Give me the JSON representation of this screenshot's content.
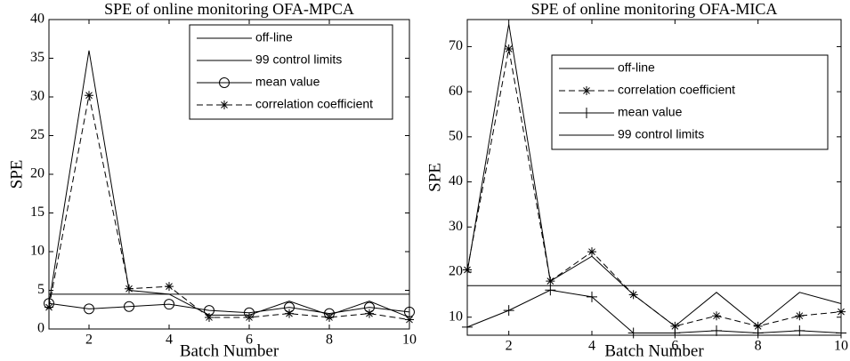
{
  "chart_data": [
    {
      "type": "line",
      "title": "SPE of online monitoring OFA-MPCA",
      "xlabel": "Batch Number",
      "ylabel": "SPE",
      "x": [
        1,
        2,
        3,
        4,
        5,
        6,
        7,
        8,
        9,
        10
      ],
      "xlim": [
        1,
        10
      ],
      "xticks": [
        2,
        4,
        6,
        8,
        10
      ],
      "ylim": [
        0,
        40
      ],
      "yticks": [
        0,
        5,
        10,
        15,
        20,
        25,
        30,
        35,
        40
      ],
      "legend": "upper right",
      "series": [
        {
          "name": "off-line",
          "color": "#000000",
          "dash": false,
          "marker": "none",
          "values": [
            3.3,
            36,
            5,
            4.5,
            1.8,
            1.8,
            3.6,
            1.8,
            3.6,
            1.5
          ]
        },
        {
          "name": "99 control limits",
          "color": "#000000",
          "dash": false,
          "marker": "none",
          "values": [
            4.5,
            4.5,
            4.5,
            4.5,
            4.5,
            4.5,
            4.5,
            4.5,
            4.5,
            4.5
          ]
        },
        {
          "name": "mean value",
          "color": "#000000",
          "dash": false,
          "marker": "circle",
          "values": [
            3.3,
            2.6,
            2.9,
            3.2,
            2.4,
            2.1,
            2.8,
            2.0,
            2.8,
            2.2
          ]
        },
        {
          "name": "correlation coefficient",
          "color": "#000000",
          "dash": true,
          "marker": "star",
          "values": [
            2.8,
            30.2,
            5.2,
            5.5,
            1.5,
            1.5,
            2.0,
            1.5,
            2.0,
            1.2
          ]
        }
      ]
    },
    {
      "type": "line",
      "title": "SPE of online monitoring OFA-MICA",
      "xlabel": "Batch Number",
      "ylabel": "SPE",
      "x": [
        1,
        2,
        3,
        4,
        5,
        6,
        7,
        8,
        9,
        10
      ],
      "xlim": [
        1,
        10
      ],
      "xticks": [
        2,
        4,
        6,
        8,
        10
      ],
      "ylim": [
        6,
        76
      ],
      "yticks": [
        10,
        20,
        30,
        40,
        50,
        60,
        70
      ],
      "legend": "upper right",
      "series": [
        {
          "name": "off-line",
          "color": "#000000",
          "dash": false,
          "marker": "none",
          "values": [
            20,
            75,
            18,
            23.5,
            15,
            8,
            15.5,
            8,
            15.5,
            13
          ]
        },
        {
          "name": "correlation coefficient",
          "color": "#000000",
          "dash": true,
          "marker": "star",
          "values": [
            20.5,
            69.5,
            18,
            24.5,
            15,
            8,
            10.3,
            8,
            10.3,
            11.2
          ]
        },
        {
          "name": "mean value",
          "color": "#000000",
          "dash": false,
          "marker": "plus",
          "values": [
            7.8,
            11.5,
            16,
            14.5,
            6.5,
            6.5,
            7,
            6.5,
            7,
            6.5
          ]
        },
        {
          "name": "99 control limits",
          "color": "#000000",
          "dash": false,
          "marker": "none",
          "values": [
            17,
            17,
            17,
            17,
            17,
            17,
            17,
            17,
            17,
            17
          ]
        }
      ]
    }
  ]
}
